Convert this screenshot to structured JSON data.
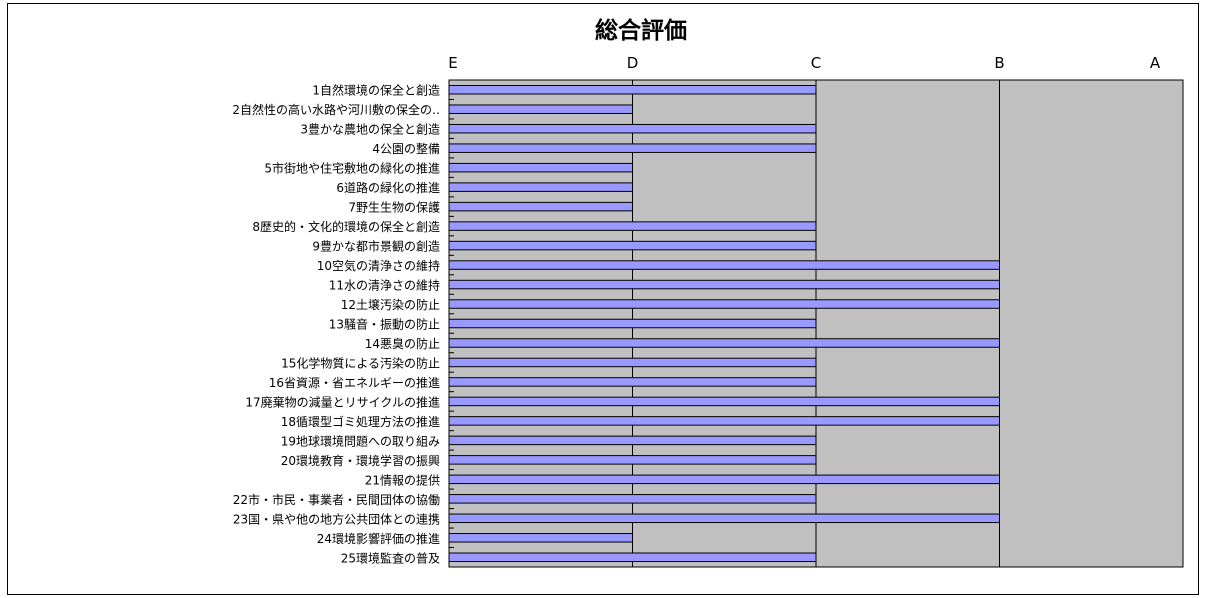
{
  "chart_data": {
    "type": "bar",
    "orientation": "horizontal",
    "title": "総合評価",
    "xlabel": "",
    "ylabel": "",
    "x_ticks": [
      "E",
      "D",
      "C",
      "B",
      "A"
    ],
    "xlim": [
      0,
      4
    ],
    "grid": true,
    "bar_color": "#9999ff",
    "plot_background": "#c0c0c0",
    "categories": [
      "1自然環境の保全と創造",
      "2自然性の高い水路や河川敷の保全の‥",
      "3豊かな農地の保全と創造",
      "4公園の整備",
      "5市街地や住宅敷地の緑化の推進",
      "6道路の緑化の推進",
      "7野生生物の保護",
      "8歴史的・文化的環境の保全と創造",
      "9豊かな都市景観の創造",
      "10空気の清浄さの維持",
      "11水の清浄さの維持",
      "12土壌汚染の防止",
      "13騒音・振動の防止",
      "14悪臭の防止",
      "15化学物質による汚染の防止",
      "16省資源・省エネルギーの推進",
      "17廃棄物の減量とリサイクルの推進",
      "18循環型ゴミ処理方法の推進",
      "19地球環境問題への取り組み",
      "20環境教育・環境学習の振興",
      "21情報の提供",
      "22市・市民・事業者・民間団体の協働",
      "23国・県や他の地方公共団体との連携",
      "24環境影響評価の推進",
      "25環境監査の普及"
    ],
    "values": [
      2,
      1,
      2,
      2,
      1,
      1,
      1,
      2,
      2,
      3,
      3,
      3,
      2,
      3,
      2,
      2,
      3,
      3,
      2,
      2,
      3,
      2,
      3,
      1,
      2
    ]
  }
}
